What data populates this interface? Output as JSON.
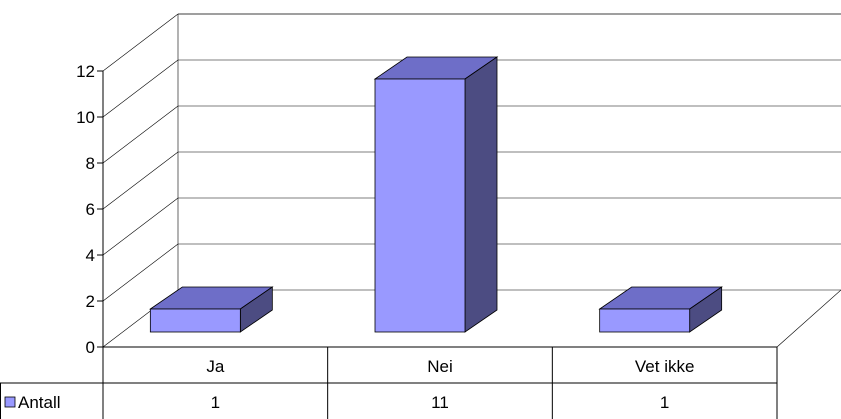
{
  "chart_data": {
    "type": "bar",
    "style": "3d-column-with-data-table",
    "categories": [
      "Ja",
      "Nei",
      "Vet ikke"
    ],
    "series": [
      {
        "name": "Antall",
        "values": [
          1,
          11,
          1
        ],
        "color": "#9999ff"
      }
    ],
    "ylim": [
      0,
      12
    ],
    "yticks": [
      0,
      2,
      4,
      6,
      8,
      10,
      12
    ],
    "grid": true,
    "legend": "data-table-left",
    "table": {
      "row_label": "Antall",
      "cells": [
        "1",
        "11",
        "1"
      ]
    },
    "colors": {
      "front": "#9999ff",
      "top": "#6e6ec8",
      "side": "#4c4c82",
      "grid": "#000000"
    }
  }
}
